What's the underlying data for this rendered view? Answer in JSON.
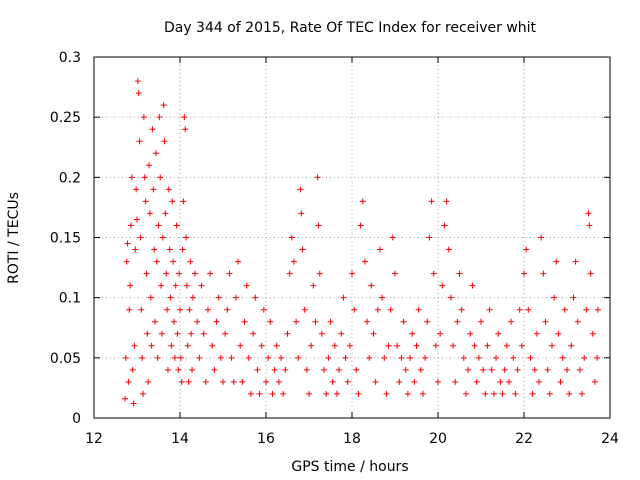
{
  "chart_data": {
    "type": "scatter",
    "title": "Day 344 of 2015, Rate Of TEC Index for receiver whit",
    "xlabel": "GPS time / hours",
    "ylabel": "ROTI / TECUs",
    "xlim": [
      12,
      24
    ],
    "ylim": [
      0,
      0.3
    ],
    "grid": true,
    "marker": "+",
    "color": "#ff0000",
    "x_ticks": [
      12,
      14,
      16,
      18,
      20,
      22,
      24
    ],
    "x_tick_labels": [
      "12",
      "14",
      "16",
      "18",
      "20",
      "22",
      "24"
    ],
    "y_ticks": [
      0,
      0.05,
      0.1,
      0.15,
      0.2,
      0.25,
      0.3
    ],
    "y_tick_labels": [
      "0",
      "0.05",
      "0.1",
      "0.15",
      "0.2",
      "0.25",
      "0.3"
    ],
    "series": [
      {
        "name": "ROTI",
        "points": [
          [
            12.72,
            0.016
          ],
          [
            12.74,
            0.05
          ],
          [
            12.76,
            0.13
          ],
          [
            12.78,
            0.145
          ],
          [
            12.8,
            0.03
          ],
          [
            12.82,
            0.09
          ],
          [
            12.84,
            0.11
          ],
          [
            12.86,
            0.16
          ],
          [
            12.88,
            0.2
          ],
          [
            12.9,
            0.04
          ],
          [
            12.92,
            0.012
          ],
          [
            12.94,
            0.06
          ],
          [
            12.96,
            0.14
          ],
          [
            12.98,
            0.19
          ],
          [
            13.0,
            0.165
          ],
          [
            13.02,
            0.28
          ],
          [
            13.04,
            0.27
          ],
          [
            13.06,
            0.23
          ],
          [
            13.08,
            0.15
          ],
          [
            13.1,
            0.09
          ],
          [
            13.12,
            0.05
          ],
          [
            13.14,
            0.02
          ],
          [
            13.16,
            0.25
          ],
          [
            13.18,
            0.2
          ],
          [
            13.2,
            0.18
          ],
          [
            13.22,
            0.12
          ],
          [
            13.24,
            0.07
          ],
          [
            13.26,
            0.03
          ],
          [
            13.28,
            0.21
          ],
          [
            13.3,
            0.17
          ],
          [
            13.32,
            0.1
          ],
          [
            13.34,
            0.06
          ],
          [
            13.36,
            0.24
          ],
          [
            13.38,
            0.19
          ],
          [
            13.4,
            0.14
          ],
          [
            13.42,
            0.08
          ],
          [
            13.44,
            0.22
          ],
          [
            13.46,
            0.13
          ],
          [
            13.48,
            0.05
          ],
          [
            13.5,
            0.16
          ],
          [
            13.52,
            0.25
          ],
          [
            13.54,
            0.2
          ],
          [
            13.56,
            0.11
          ],
          [
            13.58,
            0.07
          ],
          [
            13.6,
            0.15
          ],
          [
            13.62,
            0.26
          ],
          [
            13.64,
            0.23
          ],
          [
            13.66,
            0.17
          ],
          [
            13.68,
            0.12
          ],
          [
            13.7,
            0.09
          ],
          [
            13.72,
            0.04
          ],
          [
            13.74,
            0.19
          ],
          [
            13.76,
            0.14
          ],
          [
            13.78,
            0.1
          ],
          [
            13.8,
            0.06
          ],
          [
            13.82,
            0.18
          ],
          [
            13.84,
            0.13
          ],
          [
            13.86,
            0.08
          ],
          [
            13.88,
            0.05
          ],
          [
            13.9,
            0.11
          ],
          [
            13.92,
            0.16
          ],
          [
            13.94,
            0.07
          ],
          [
            13.96,
            0.04
          ],
          [
            13.98,
            0.12
          ],
          [
            14.0,
            0.09
          ],
          [
            14.02,
            0.05
          ],
          [
            14.04,
            0.03
          ],
          [
            14.06,
            0.14
          ],
          [
            14.08,
            0.18
          ],
          [
            14.1,
            0.25
          ],
          [
            14.12,
            0.24
          ],
          [
            14.14,
            0.15
          ],
          [
            14.16,
            0.11
          ],
          [
            14.18,
            0.06
          ],
          [
            14.2,
            0.03
          ],
          [
            14.22,
            0.09
          ],
          [
            14.24,
            0.13
          ],
          [
            14.26,
            0.07
          ],
          [
            14.28,
            0.04
          ],
          [
            14.3,
            0.1
          ],
          [
            14.35,
            0.12
          ],
          [
            14.4,
            0.08
          ],
          [
            14.45,
            0.05
          ],
          [
            14.5,
            0.11
          ],
          [
            14.55,
            0.07
          ],
          [
            14.6,
            0.03
          ],
          [
            14.65,
            0.09
          ],
          [
            14.7,
            0.12
          ],
          [
            14.75,
            0.06
          ],
          [
            14.8,
            0.04
          ],
          [
            14.85,
            0.08
          ],
          [
            14.9,
            0.1
          ],
          [
            14.95,
            0.05
          ],
          [
            15.0,
            0.03
          ],
          [
            15.05,
            0.07
          ],
          [
            15.1,
            0.09
          ],
          [
            15.15,
            0.12
          ],
          [
            15.2,
            0.05
          ],
          [
            15.25,
            0.03
          ],
          [
            15.3,
            0.1
          ],
          [
            15.35,
            0.13
          ],
          [
            15.4,
            0.06
          ],
          [
            15.45,
            0.03
          ],
          [
            15.5,
            0.08
          ],
          [
            15.55,
            0.11
          ],
          [
            15.6,
            0.05
          ],
          [
            15.65,
            0.02
          ],
          [
            15.7,
            0.07
          ],
          [
            15.75,
            0.1
          ],
          [
            15.8,
            0.04
          ],
          [
            15.85,
            0.02
          ],
          [
            15.9,
            0.06
          ],
          [
            15.95,
            0.09
          ],
          [
            16.0,
            0.03
          ],
          [
            16.05,
            0.05
          ],
          [
            16.1,
            0.08
          ],
          [
            16.15,
            0.02
          ],
          [
            16.2,
            0.04
          ],
          [
            16.25,
            0.06
          ],
          [
            16.3,
            0.03
          ],
          [
            16.35,
            0.05
          ],
          [
            16.4,
            0.02
          ],
          [
            16.45,
            0.04
          ],
          [
            16.5,
            0.07
          ],
          [
            16.55,
            0.12
          ],
          [
            16.6,
            0.15
          ],
          [
            16.65,
            0.13
          ],
          [
            16.7,
            0.08
          ],
          [
            16.75,
            0.05
          ],
          [
            16.8,
            0.19
          ],
          [
            16.82,
            0.17
          ],
          [
            16.85,
            0.14
          ],
          [
            16.9,
            0.09
          ],
          [
            16.95,
            0.04
          ],
          [
            17.0,
            0.02
          ],
          [
            17.05,
            0.06
          ],
          [
            17.1,
            0.11
          ],
          [
            17.15,
            0.08
          ],
          [
            17.2,
            0.2
          ],
          [
            17.22,
            0.16
          ],
          [
            17.25,
            0.12
          ],
          [
            17.3,
            0.07
          ],
          [
            17.35,
            0.04
          ],
          [
            17.4,
            0.02
          ],
          [
            17.45,
            0.05
          ],
          [
            17.5,
            0.08
          ],
          [
            17.55,
            0.03
          ],
          [
            17.6,
            0.06
          ],
          [
            17.65,
            0.02
          ],
          [
            17.7,
            0.04
          ],
          [
            17.75,
            0.07
          ],
          [
            17.8,
            0.1
          ],
          [
            17.85,
            0.05
          ],
          [
            17.9,
            0.03
          ],
          [
            17.95,
            0.06
          ],
          [
            18.0,
            0.12
          ],
          [
            18.05,
            0.09
          ],
          [
            18.1,
            0.04
          ],
          [
            18.15,
            0.02
          ],
          [
            18.2,
            0.16
          ],
          [
            18.25,
            0.18
          ],
          [
            18.3,
            0.13
          ],
          [
            18.35,
            0.08
          ],
          [
            18.4,
            0.05
          ],
          [
            18.45,
            0.11
          ],
          [
            18.5,
            0.07
          ],
          [
            18.55,
            0.03
          ],
          [
            18.6,
            0.09
          ],
          [
            18.65,
            0.14
          ],
          [
            18.7,
            0.1
          ],
          [
            18.75,
            0.05
          ],
          [
            18.8,
            0.02
          ],
          [
            18.85,
            0.06
          ],
          [
            18.9,
            0.09
          ],
          [
            18.95,
            0.15
          ],
          [
            19.0,
            0.12
          ],
          [
            19.05,
            0.06
          ],
          [
            19.1,
            0.03
          ],
          [
            19.15,
            0.05
          ],
          [
            19.2,
            0.08
          ],
          [
            19.25,
            0.04
          ],
          [
            19.3,
            0.02
          ],
          [
            19.35,
            0.05
          ],
          [
            19.4,
            0.07
          ],
          [
            19.45,
            0.03
          ],
          [
            19.5,
            0.06
          ],
          [
            19.55,
            0.09
          ],
          [
            19.6,
            0.04
          ],
          [
            19.65,
            0.02
          ],
          [
            19.7,
            0.05
          ],
          [
            19.75,
            0.08
          ],
          [
            19.8,
            0.15
          ],
          [
            19.85,
            0.18
          ],
          [
            19.9,
            0.12
          ],
          [
            19.95,
            0.06
          ],
          [
            20.0,
            0.03
          ],
          [
            20.05,
            0.07
          ],
          [
            20.1,
            0.11
          ],
          [
            20.15,
            0.16
          ],
          [
            20.2,
            0.18
          ],
          [
            20.25,
            0.14
          ],
          [
            20.3,
            0.1
          ],
          [
            20.35,
            0.06
          ],
          [
            20.4,
            0.03
          ],
          [
            20.45,
            0.08
          ],
          [
            20.5,
            0.12
          ],
          [
            20.55,
            0.09
          ],
          [
            20.6,
            0.05
          ],
          [
            20.65,
            0.02
          ],
          [
            20.7,
            0.04
          ],
          [
            20.75,
            0.07
          ],
          [
            20.8,
            0.11
          ],
          [
            20.85,
            0.06
          ],
          [
            20.9,
            0.03
          ],
          [
            20.95,
            0.05
          ],
          [
            21.0,
            0.08
          ],
          [
            21.05,
            0.04
          ],
          [
            21.1,
            0.02
          ],
          [
            21.15,
            0.06
          ],
          [
            21.2,
            0.09
          ],
          [
            21.25,
            0.04
          ],
          [
            21.3,
            0.02
          ],
          [
            21.35,
            0.05
          ],
          [
            21.4,
            0.07
          ],
          [
            21.45,
            0.03
          ],
          [
            21.5,
            0.02
          ],
          [
            21.55,
            0.04
          ],
          [
            21.6,
            0.06
          ],
          [
            21.65,
            0.03
          ],
          [
            21.7,
            0.08
          ],
          [
            21.75,
            0.05
          ],
          [
            21.8,
            0.02
          ],
          [
            21.85,
            0.04
          ],
          [
            21.9,
            0.09
          ],
          [
            21.95,
            0.06
          ],
          [
            22.0,
            0.12
          ],
          [
            22.05,
            0.14
          ],
          [
            22.1,
            0.09
          ],
          [
            22.15,
            0.05
          ],
          [
            22.2,
            0.02
          ],
          [
            22.25,
            0.04
          ],
          [
            22.3,
            0.07
          ],
          [
            22.35,
            0.03
          ],
          [
            22.4,
            0.15
          ],
          [
            22.45,
            0.12
          ],
          [
            22.5,
            0.08
          ],
          [
            22.55,
            0.04
          ],
          [
            22.6,
            0.02
          ],
          [
            22.65,
            0.06
          ],
          [
            22.7,
            0.1
          ],
          [
            22.75,
            0.13
          ],
          [
            22.8,
            0.07
          ],
          [
            22.85,
            0.03
          ],
          [
            22.9,
            0.05
          ],
          [
            22.95,
            0.09
          ],
          [
            23.0,
            0.04
          ],
          [
            23.05,
            0.02
          ],
          [
            23.1,
            0.06
          ],
          [
            23.15,
            0.1
          ],
          [
            23.2,
            0.13
          ],
          [
            23.25,
            0.08
          ],
          [
            23.3,
            0.04
          ],
          [
            23.35,
            0.02
          ],
          [
            23.4,
            0.05
          ],
          [
            23.45,
            0.09
          ],
          [
            23.5,
            0.17
          ],
          [
            23.52,
            0.16
          ],
          [
            23.55,
            0.12
          ],
          [
            23.6,
            0.07
          ],
          [
            23.65,
            0.03
          ],
          [
            23.7,
            0.05
          ],
          [
            23.72,
            0.09
          ]
        ]
      }
    ]
  }
}
